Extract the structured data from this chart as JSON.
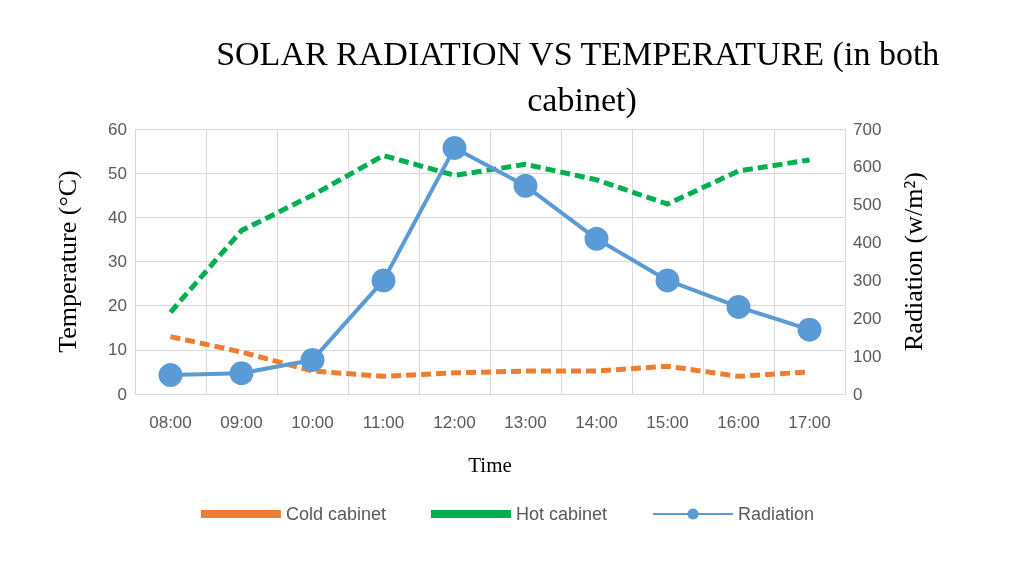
{
  "chart_data": {
    "type": "line",
    "title": "SOLAR RADIATION VS TEMPERATURE (in both cabinet)",
    "xlabel": "Time",
    "ylabel": "Temperature (°C)",
    "y2label": "Radiation (w/m²)",
    "categories": [
      "08:00",
      "09:00",
      "10:00",
      "11:00",
      "12:00",
      "13:00",
      "14:00",
      "15:00",
      "16:00",
      "17:00"
    ],
    "series": [
      {
        "name": "Cold cabinet",
        "color": "#ed7d31",
        "line_style": "dashed",
        "marker": "none",
        "values": [
          13,
          9.5,
          5.2,
          4,
          4.8,
          5.2,
          5.2,
          6.3,
          4,
          5
        ]
      },
      {
        "name": "Hot cabinet",
        "color": "#00b050",
        "line_style": "dashed",
        "marker": "none",
        "values": [
          18.5,
          37,
          45,
          54,
          49.5,
          52,
          48.5,
          43,
          50.5,
          53
        ]
      },
      {
        "name": "Radiation",
        "color": "#5b9bd5",
        "line_style": "solid",
        "marker": "circle",
        "axis": "y2",
        "values": [
          50,
          55,
          90,
          300,
          650,
          550,
          410,
          300,
          230,
          170
        ]
      }
    ],
    "ylim": [
      0,
      60
    ],
    "yticks": [
      0,
      10,
      20,
      30,
      40,
      50,
      60
    ],
    "y2lim": [
      0,
      700
    ],
    "y2ticks": [
      0,
      100,
      200,
      300,
      400,
      500,
      600,
      700
    ],
    "grid": true,
    "legend": "bottom"
  }
}
